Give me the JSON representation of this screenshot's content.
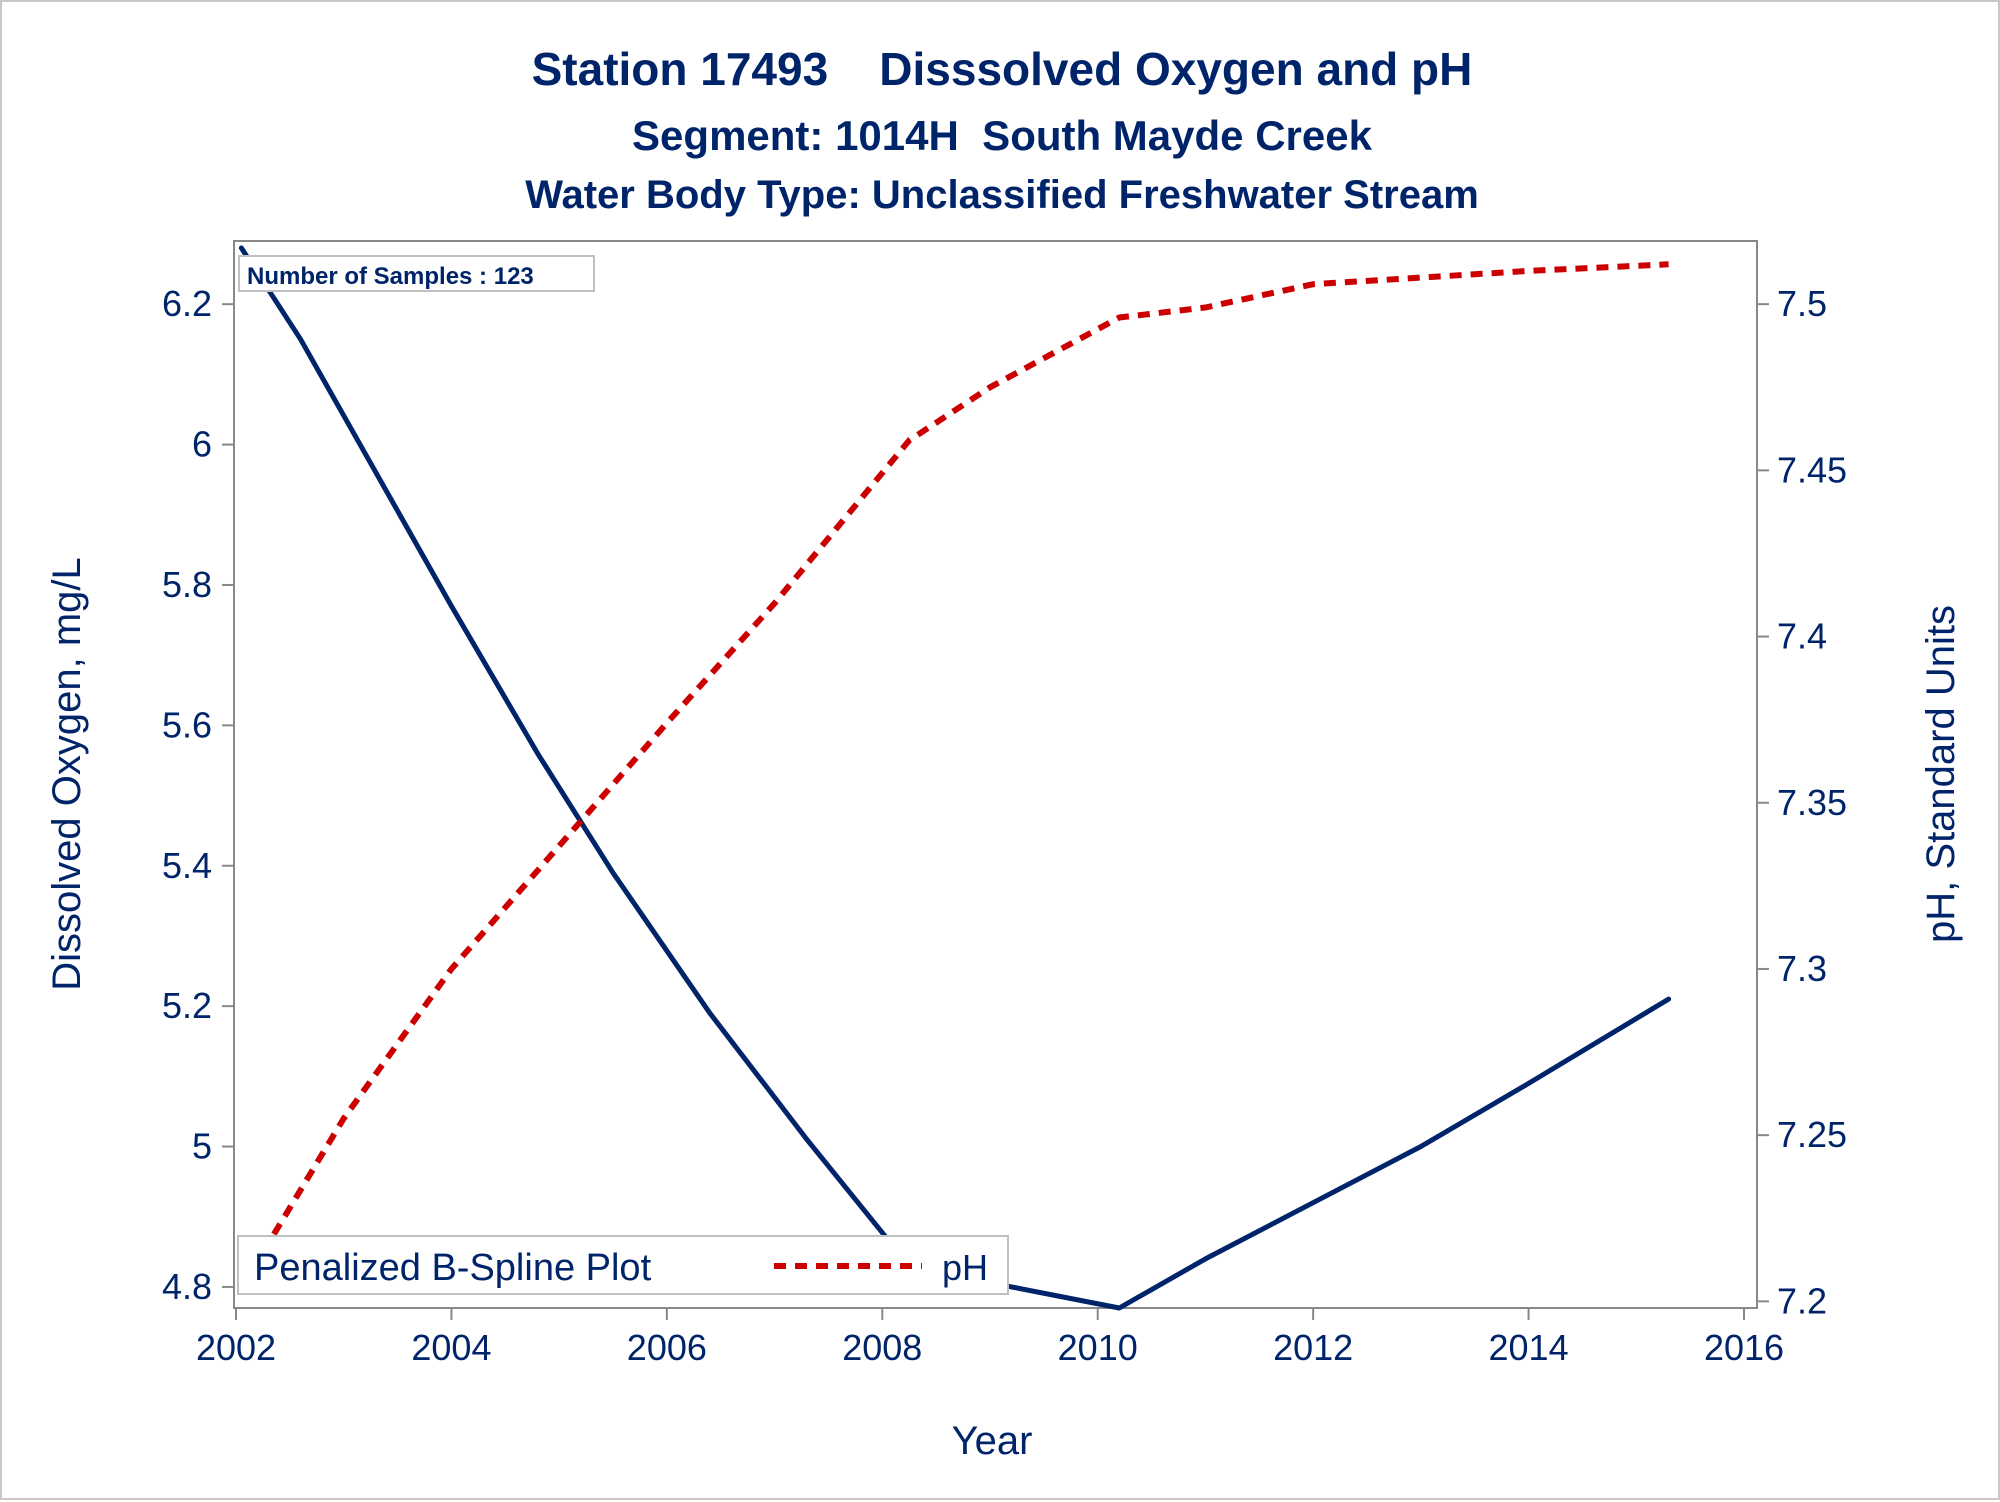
{
  "chart_data": {
    "type": "line",
    "title": "Station 17493    Disssolved Oxygen and pH",
    "subtitle": "Segment: 1014H  South Mayde Creek",
    "subtitle2": "Water Body Type: Unclassified Freshwater Stream",
    "xlabel": "Year",
    "ylabel": "Dissolved Oxygen, mg/L",
    "y2label": "pH, Standard Units",
    "inset_label": "Number of Samples : 123",
    "xlim": [
      2002,
      2016
    ],
    "ylim": [
      4.77,
      6.29
    ],
    "y2lim": [
      7.198,
      7.519
    ],
    "x_ticks": [
      2002,
      2004,
      2006,
      2008,
      2010,
      2012,
      2014,
      2016
    ],
    "y_ticks": [
      4.8,
      5,
      5.2,
      5.4,
      5.6,
      5.8,
      6,
      6.2
    ],
    "y2_ticks": [
      7.2,
      7.25,
      7.3,
      7.35,
      7.4,
      7.45,
      7.5
    ],
    "grid": false,
    "legend": {
      "placement": "bottom-left",
      "entries": [
        "Penalized B-Spline Plot",
        "pH"
      ]
    },
    "series": [
      {
        "name": "Penalized B-Spline Plot",
        "axis": "left",
        "color": "#002469",
        "style": "solid",
        "x": [
          2002.05,
          2002.6,
          2003.3,
          2004.0,
          2004.8,
          2005.5,
          2006.4,
          2007.3,
          2008.25,
          2009.2,
          2010.2,
          2011.0,
          2012.0,
          2013.0,
          2014.0,
          2015.3
        ],
        "y": [
          6.28,
          6.15,
          5.96,
          5.77,
          5.56,
          5.39,
          5.19,
          5.01,
          4.83,
          4.8,
          4.77,
          4.84,
          4.92,
          5.0,
          5.09,
          5.21
        ]
      },
      {
        "name": "pH",
        "axis": "right",
        "color": "#cc0000",
        "style": "dashed",
        "x": [
          2002.05,
          2003.0,
          2004.0,
          2005.0,
          2006.0,
          2007.0,
          2008.25,
          2009.0,
          2010.2,
          2011.0,
          2012.0,
          2013.0,
          2014.0,
          2015.3
        ],
        "y": [
          7.204,
          7.255,
          7.3,
          7.337,
          7.374,
          7.41,
          7.459,
          7.475,
          7.496,
          7.499,
          7.506,
          7.508,
          7.51,
          7.512
        ]
      }
    ]
  }
}
